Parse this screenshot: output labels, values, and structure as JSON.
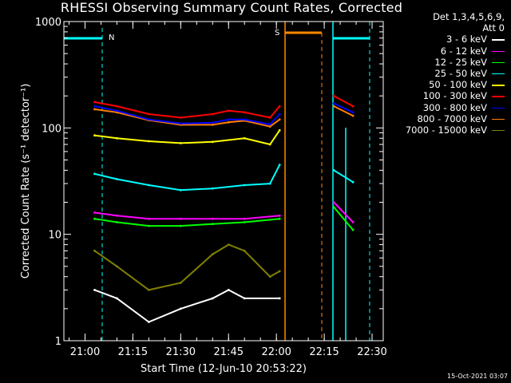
{
  "title": "RHESSI Observing Summary Count Rates, Corrected",
  "legend_header": [
    "Det 1,3,4,5,6,9,",
    "Att 0"
  ],
  "timestamp": "15-Oct-2021 03:07",
  "flags": {
    "N": "N",
    "S": "S"
  },
  "colors": {
    "background": "#000000",
    "axis": "#ffffff",
    "night": "#00ffff",
    "saa": "#ff8800"
  },
  "chart_data": {
    "type": "line",
    "title": "RHESSI Observing Summary Count Rates, Corrected",
    "xlabel": "Start Time (12-Jun-10 20:53:22)",
    "ylabel": "Corrected Count Rate (s⁻¹ detector⁻¹)",
    "xlim": [
      "20:53:22",
      "22:33:30"
    ],
    "ylim": [
      1,
      1000
    ],
    "yscale": "log",
    "xticks": [
      "21:00",
      "21:15",
      "21:30",
      "21:45",
      "22:00",
      "22:15",
      "22:30"
    ],
    "yticks": [
      "1",
      "10",
      "100",
      "1000"
    ],
    "legend_position": "right",
    "series": [
      {
        "name": "3 - 6 keV",
        "color": "#ffffff",
        "x": [
          "21:03",
          "21:10",
          "21:20",
          "21:30",
          "21:40",
          "21:45",
          "21:50",
          "22:01"
        ],
        "values": [
          3,
          2.5,
          1.5,
          2,
          2.5,
          3,
          2.5,
          2.5
        ]
      },
      {
        "name": "6 - 12 keV",
        "color": "#ff00ff",
        "x": [
          "21:03",
          "21:10",
          "21:20",
          "21:30",
          "21:40",
          "21:50",
          "22:01",
          "22:18",
          "22:24"
        ],
        "values": [
          16,
          15,
          14,
          14,
          14,
          14,
          15,
          20,
          13
        ]
      },
      {
        "name": "12 - 25 keV",
        "color": "#00ff00",
        "x": [
          "21:03",
          "21:10",
          "21:20",
          "21:30",
          "21:40",
          "21:50",
          "22:01",
          "22:18",
          "22:24"
        ],
        "values": [
          14,
          13,
          12,
          12,
          12.5,
          13,
          14,
          18,
          11
        ]
      },
      {
        "name": "25 - 50 keV",
        "color": "#00ffff",
        "x": [
          "21:03",
          "21:10",
          "21:20",
          "21:30",
          "21:40",
          "21:50",
          "21:58",
          "22:01",
          "22:18",
          "22:24"
        ],
        "values": [
          37,
          33,
          29,
          26,
          27,
          29,
          30,
          45,
          40,
          31
        ]
      },
      {
        "name": "50 - 100 keV",
        "color": "#ffff00",
        "x": [
          "21:03",
          "21:10",
          "21:20",
          "21:30",
          "21:40",
          "21:50",
          "21:58",
          "22:01"
        ],
        "values": [
          85,
          80,
          75,
          72,
          74,
          80,
          70,
          95
        ]
      },
      {
        "name": "100 - 300 keV",
        "color": "#ff0000",
        "x": [
          "21:03",
          "21:10",
          "21:20",
          "21:30",
          "21:40",
          "21:45",
          "21:50",
          "21:58",
          "22:01",
          "22:18",
          "22:24"
        ],
        "values": [
          175,
          160,
          135,
          125,
          135,
          145,
          140,
          125,
          160,
          200,
          160
        ]
      },
      {
        "name": "300 - 800 keV",
        "color": "#0000ff",
        "x": [
          "21:03",
          "21:10",
          "21:20",
          "21:30",
          "21:40",
          "21:45",
          "21:50",
          "21:58",
          "22:01",
          "22:18",
          "22:24"
        ],
        "values": [
          160,
          145,
          120,
          110,
          112,
          120,
          120,
          108,
          135,
          170,
          140
        ]
      },
      {
        "name": "800 - 7000 keV",
        "color": "#ff8000",
        "x": [
          "21:03",
          "21:10",
          "21:20",
          "21:30",
          "21:40",
          "21:45",
          "21:50",
          "21:58",
          "22:01",
          "22:18",
          "22:24"
        ],
        "values": [
          150,
          140,
          118,
          107,
          107,
          113,
          117,
          103,
          120,
          160,
          130
        ]
      },
      {
        "name": "7000 - 15000 keV",
        "color": "#808000",
        "x": [
          "21:03",
          "21:10",
          "21:20",
          "21:30",
          "21:40",
          "21:45",
          "21:50",
          "21:58",
          "22:01"
        ],
        "values": [
          7,
          5,
          3,
          3.5,
          6.5,
          8,
          7,
          4,
          4.5
        ]
      }
    ]
  }
}
